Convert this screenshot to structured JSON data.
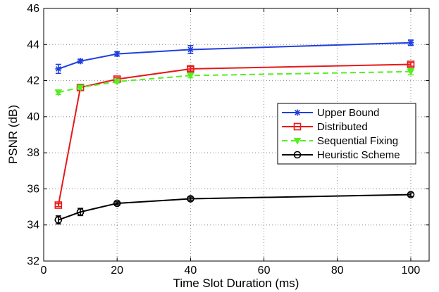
{
  "chart_data": {
    "type": "line",
    "title": "",
    "xlabel": "Time Slot Duration (ms)",
    "ylabel": "PSNR (dB)",
    "xlim": [
      0,
      105
    ],
    "ylim": [
      32,
      46
    ],
    "xticks": [
      0,
      20,
      40,
      60,
      80,
      100
    ],
    "yticks": [
      32,
      34,
      36,
      38,
      40,
      42,
      44,
      46
    ],
    "grid": "dotted",
    "legend_position": "center-right",
    "x": [
      4,
      10,
      20,
      40,
      100
    ],
    "series": [
      {
        "name": "Upper Bound",
        "color": "#1f3fe0",
        "dash": "solid",
        "marker": "star",
        "values": [
          42.65,
          43.08,
          43.48,
          43.72,
          44.1
        ],
        "errors": [
          0.25,
          0.1,
          0.12,
          0.22,
          0.15
        ]
      },
      {
        "name": "Distributed",
        "color": "#e81818",
        "dash": "solid",
        "marker": "square",
        "values": [
          35.1,
          41.62,
          42.08,
          42.65,
          42.9
        ],
        "errors": [
          0.08,
          0.12,
          0.08,
          0.12,
          0.1
        ]
      },
      {
        "name": "Sequential Fixing",
        "color": "#55ee22",
        "dash": "dashed",
        "marker": "triangle",
        "values": [
          41.35,
          41.62,
          41.95,
          42.28,
          42.5
        ],
        "errors": [
          0.12,
          0.12,
          0.08,
          0.12,
          0.18
        ]
      },
      {
        "name": "Heuristic Scheme",
        "color": "#000000",
        "dash": "solid",
        "marker": "circle",
        "values": [
          34.28,
          34.72,
          35.2,
          35.45,
          35.68
        ],
        "errors": [
          0.22,
          0.2,
          0.08,
          0.1,
          0.1
        ]
      }
    ]
  }
}
